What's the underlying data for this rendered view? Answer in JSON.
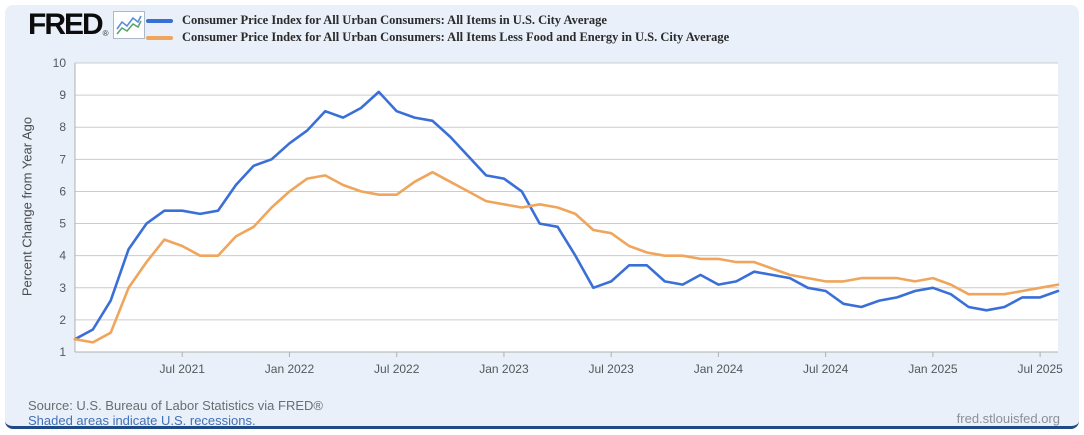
{
  "header": {
    "logo_text": "FRED",
    "logo_registered": "®",
    "legend": [
      {
        "label": "Consumer Price Index for All Urban Consumers: All Items in U.S. City Average",
        "color": "#3a6fd8"
      },
      {
        "label": "Consumer Price Index for All Urban Consumers: All Items Less Food and Energy in U.S. City Average",
        "color": "#f0a55c"
      }
    ]
  },
  "footer": {
    "source": "Source: U.S. Bureau of Labor Statistics via FRED®",
    "recessions_note": "Shaded areas indicate U.S. recessions.",
    "site": "fred.stlouisfed.org"
  },
  "colors": {
    "panel_bg": "#e9f0fa",
    "plot_bg": "#ffffff",
    "gridline": "#cccccc",
    "axis_line": "#b0b0b0",
    "axis_text": "#55585c",
    "bottom_bar": "#1e4a86",
    "legend_text": "#2b2b2b",
    "link": "#4170b8"
  },
  "chart_data": {
    "type": "line",
    "title": "",
    "xlabel": "",
    "ylabel": "Percent Change from Year Ago",
    "ylim": [
      1,
      10
    ],
    "yticks": [
      1,
      2,
      3,
      4,
      5,
      6,
      7,
      8,
      9,
      10
    ],
    "grid": true,
    "legend_position": "top-left",
    "frequency": "monthly",
    "x_start": "Jan 2021",
    "x_end": "Aug 2025",
    "xtick_labels": [
      "Jul 2021",
      "Jan 2022",
      "Jul 2022",
      "Jan 2023",
      "Jul 2023",
      "Jan 2024",
      "Jul 2024",
      "Jan 2025",
      "Jul 2025"
    ],
    "xtick_indices": [
      6,
      12,
      18,
      24,
      30,
      36,
      42,
      48,
      54
    ],
    "series": [
      {
        "id": "cpi-all-items",
        "name": "Consumer Price Index for All Urban Consumers: All Items in U.S. City Average",
        "color": "#3a6fd8",
        "values": [
          1.4,
          1.7,
          2.6,
          4.2,
          5.0,
          5.4,
          5.4,
          5.3,
          5.4,
          6.2,
          6.8,
          7.0,
          7.5,
          7.9,
          8.5,
          8.3,
          8.6,
          9.1,
          8.5,
          8.3,
          8.2,
          7.7,
          7.1,
          6.5,
          6.4,
          6.0,
          5.0,
          4.9,
          4.0,
          3.0,
          3.2,
          3.7,
          3.7,
          3.2,
          3.1,
          3.4,
          3.1,
          3.2,
          3.5,
          3.4,
          3.3,
          3.0,
          2.9,
          2.5,
          2.4,
          2.6,
          2.7,
          2.9,
          3.0,
          2.8,
          2.4,
          2.3,
          2.4,
          2.7,
          2.7,
          2.9
        ]
      },
      {
        "id": "cpi-core",
        "name": "Consumer Price Index for All Urban Consumers: All Items Less Food and Energy in U.S. City Average",
        "color": "#f0a55c",
        "values": [
          1.4,
          1.3,
          1.6,
          3.0,
          3.8,
          4.5,
          4.3,
          4.0,
          4.0,
          4.6,
          4.9,
          5.5,
          6.0,
          6.4,
          6.5,
          6.2,
          6.0,
          5.9,
          5.9,
          6.3,
          6.6,
          6.3,
          6.0,
          5.7,
          5.6,
          5.5,
          5.6,
          5.5,
          5.3,
          4.8,
          4.7,
          4.3,
          4.1,
          4.0,
          4.0,
          3.9,
          3.9,
          3.8,
          3.8,
          3.6,
          3.4,
          3.3,
          3.2,
          3.2,
          3.3,
          3.3,
          3.3,
          3.2,
          3.3,
          3.1,
          2.8,
          2.8,
          2.8,
          2.9,
          3.0,
          3.1
        ]
      }
    ]
  }
}
